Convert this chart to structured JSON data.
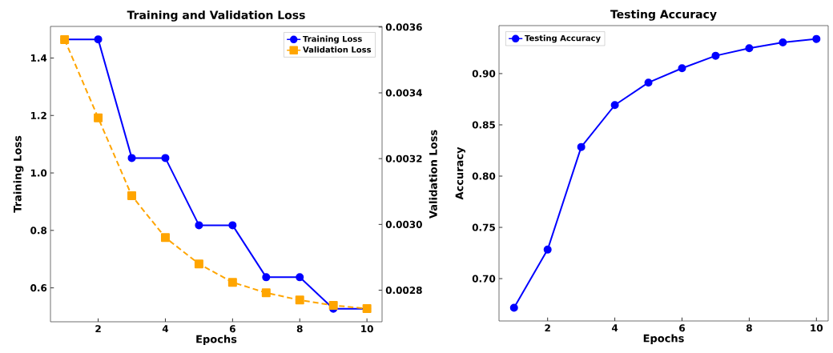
{
  "chart_data": [
    {
      "type": "line",
      "title": "Training and Validation Loss",
      "xlabel": "Epochs",
      "ylabel": "Training Loss",
      "y2label": "Validation Loss",
      "x": [
        1,
        2,
        3,
        4,
        5,
        6,
        7,
        8,
        9,
        10
      ],
      "xlim": [
        0.58,
        10.45
      ],
      "xticks": [
        2,
        4,
        6,
        8,
        10
      ],
      "ylim": [
        0.482,
        1.51
      ],
      "yticks": [
        0.6,
        0.8,
        {
          "value": 1,
          "label": "1.0"
        },
        1.2,
        1.4
      ],
      "y2lim": [
        0.002704,
        0.003602
      ],
      "y2ticks": [
        0.0028,
        {
          "value": 0.003,
          "label": "0.0030"
        },
        0.0032,
        0.0034,
        0.0036
      ],
      "legend": "top right",
      "series": [
        {
          "name": "Training Loss",
          "color": "#0000ff",
          "marker": "circle",
          "line_style": "solid",
          "values": [
            1.465,
            1.465,
            1.052,
            1.052,
            0.818,
            0.818,
            0.637,
            0.637,
            0.527,
            0.527
          ]
        },
        {
          "name": "Validation Loss",
          "color": "#ffa500",
          "marker": "square",
          "line_style": "dashed",
          "axis": "y2",
          "values": [
            0.003562,
            0.003324,
            0.003087,
            0.00296,
            0.00288,
            0.002824,
            0.002792,
            0.00277,
            0.002754,
            0.002744
          ]
        }
      ]
    },
    {
      "type": "line",
      "title": "Testing Accuracy",
      "xlabel": "Epochs",
      "ylabel": "Accuracy",
      "x": [
        1,
        2,
        3,
        4,
        5,
        6,
        7,
        8,
        9,
        10
      ],
      "xlim": [
        0.553,
        10.35
      ],
      "xticks": [
        2,
        4,
        6,
        8,
        10
      ],
      "ylim": [
        0.6587,
        0.9468
      ],
      "yticks": [
        {
          "value": 0.7,
          "label": "0.70"
        },
        0.75,
        {
          "value": 0.8,
          "label": "0.80"
        },
        0.85,
        {
          "value": 0.9,
          "label": "0.90"
        }
      ],
      "legend": "top left",
      "series": [
        {
          "name": "Testing Accuracy",
          "color": "#0000ff",
          "marker": "circle",
          "line_style": "solid",
          "values": [
            0.6716,
            0.7283,
            0.8284,
            0.8693,
            0.8912,
            0.9052,
            0.9174,
            0.9247,
            0.9304,
            0.9338
          ]
        }
      ]
    }
  ]
}
